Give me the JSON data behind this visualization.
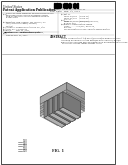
{
  "bg_color": "#ffffff",
  "border_color": "#000000",
  "title_top": "United States",
  "title_pub": "Patent Application Publication",
  "barcode_color": "#000000",
  "text_color": "#333333",
  "diagram_bg": "#f0f0f0",
  "diagram_line_color": "#555555",
  "diagram_fill_light": "#d8d8d8",
  "diagram_fill_mid": "#b8b8b8",
  "diagram_fill_dark": "#888888",
  "diagram_fill_top": "#e8e8e8"
}
